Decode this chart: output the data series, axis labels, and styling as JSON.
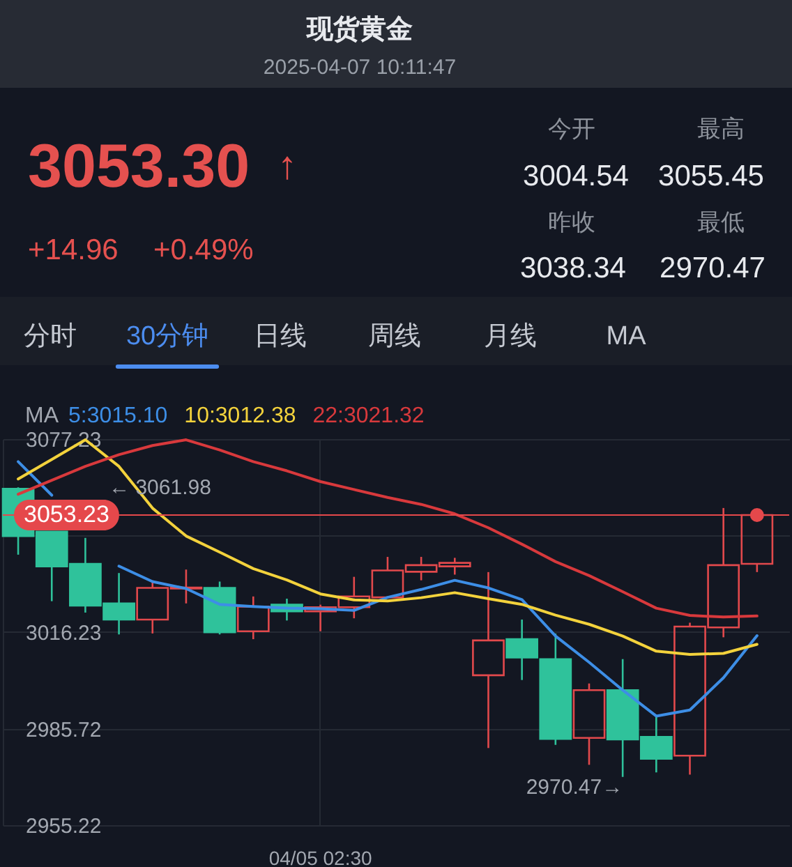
{
  "chart_data": {
    "type": "candlestick",
    "title": "现货黄金",
    "subtitle": "2025-04-07 10:11:47",
    "categories": [
      null,
      null,
      null,
      null,
      null,
      null,
      null,
      null,
      null,
      "04/05 02:30",
      null,
      null,
      null,
      null,
      null,
      null,
      null,
      null,
      null,
      null,
      null,
      null,
      null
    ],
    "ohlc": [
      [
        3061.5,
        3061.98,
        3040.7,
        3046.6
      ],
      [
        3048.0,
        3048.0,
        3026.0,
        3037.0
      ],
      [
        3037.8,
        3046.0,
        3022.4,
        3024.6
      ],
      [
        3025.3,
        3034.9,
        3015.5,
        3020.2
      ],
      [
        3020.2,
        3032.2,
        3015.8,
        3030.2
      ],
      [
        3030.0,
        3036.0,
        3025.3,
        3030.3
      ],
      [
        3030.2,
        3032.2,
        3015.5,
        3016.2
      ],
      [
        3016.5,
        3027.5,
        3014.0,
        3024.3
      ],
      [
        3024.9,
        3026.8,
        3019.9,
        3022.8
      ],
      [
        3022.8,
        3024.9,
        3016.5,
        3024.1
      ],
      [
        3024.1,
        3033.7,
        3020.6,
        3027.5
      ],
      [
        3027.2,
        3040.0,
        3027.0,
        3035.7
      ],
      [
        3035.3,
        3040.0,
        3032.6,
        3037.4
      ],
      [
        3037.0,
        3039.7,
        3034.4,
        3038.1
      ],
      [
        3002.6,
        3035.2,
        2979.6,
        3013.6
      ],
      [
        3014.0,
        3020.2,
        3001.1,
        3008.2
      ],
      [
        3007.7,
        3015.8,
        2980.6,
        2982.5
      ],
      [
        2982.8,
        3000.0,
        2974.3,
        2997.9
      ],
      [
        2997.9,
        3007.7,
        2970.47,
        2982.3
      ],
      [
        2983.1,
        2989.4,
        2971.9,
        2976.2
      ],
      [
        2977.2,
        3019.2,
        2971.2,
        3018.0
      ],
      [
        3017.7,
        3055.45,
        3014.6,
        3037.4
      ],
      [
        3037.8,
        3053.23,
        3035.2,
        3053.23
      ]
    ],
    "colors": [
      "#2fc29b",
      "#2fc29b",
      "#2fc29b",
      "#2fc29b",
      "#e2494c",
      "#e2494c",
      "#2fc29b",
      "#e2494c",
      "#2fc29b",
      "#e2494c",
      "#e2494c",
      "#e2494c",
      "#e2494c",
      "#e2494c",
      "#e2494c",
      "#2fc29b",
      "#2fc29b",
      "#e2494c",
      "#2fc29b",
      "#2fc29b",
      "#e2494c",
      "#e2494c",
      "#e2494c"
    ],
    "series": [
      {
        "name": "5:3015.10",
        "type": "line",
        "color": "#3d8ee6",
        "values": [
          3070.1,
          3059.5,
          null,
          3037.1,
          3032.2,
          3030.0,
          3025.0,
          3024.3,
          3023.8,
          3023.6,
          3023.1,
          3027.2,
          3029.7,
          3032.6,
          3030.2,
          3026.5,
          3015.0,
          3006.7,
          2997.9,
          2989.7,
          2991.6,
          3001.8,
          3015.1
        ]
      },
      {
        "name": "10:3012.38",
        "type": "line",
        "color": "#f3d23c",
        "values": [
          3064.6,
          3070.8,
          3077.0,
          3068.6,
          3055.4,
          3046.6,
          3041.5,
          3036.3,
          3032.7,
          3028.3,
          3026.4,
          3026.1,
          3027.1,
          3028.7,
          3026.8,
          3025.0,
          3021.6,
          3018.7,
          3015.0,
          3010.2,
          3009.2,
          3009.5,
          3012.38
        ]
      },
      {
        "name": "22:3021.32",
        "type": "line",
        "color": "#d8393c",
        "values": [
          3059.8,
          3064.2,
          3068.6,
          3072.3,
          3075.2,
          3077.0,
          3073.8,
          3070.1,
          3067.2,
          3063.8,
          3061.3,
          3058.8,
          3056.6,
          3053.6,
          3049.2,
          3044.0,
          3038.5,
          3034.1,
          3029.0,
          3023.8,
          3021.5,
          3021.0,
          3021.32
        ]
      },
      {
        "type": "scatter",
        "color": "#e5484b",
        "values": [
          null,
          null,
          null,
          null,
          null,
          null,
          null,
          null,
          null,
          null,
          null,
          null,
          null,
          null,
          null,
          null,
          null,
          null,
          null,
          null,
          null,
          null,
          3053.23
        ]
      }
    ],
    "ylim": [
      2955.22,
      3077.23
    ],
    "yticks": [
      2955.22,
      2985.72,
      3016.23,
      {
        "value": 3046.73,
        "label": null
      },
      3077.23
    ],
    "grid": true,
    "legend": "top left",
    "legend_title": "MA",
    "ref_lines": [
      {
        "axis": "y",
        "value": 3053.23,
        "label": "3053.23",
        "color": "#e5484b"
      }
    ],
    "annotations": [
      "3053.30",
      "↑",
      "+14.96",
      "+0.49%",
      "今开",
      "最高",
      "3004.54",
      "3055.45",
      "昨收",
      "最低",
      "3038.34",
      "2970.47",
      "分时",
      "30分钟",
      "日线",
      "周线",
      "月线",
      "MA",
      "← 3061.98",
      "2970.47→"
    ]
  }
}
